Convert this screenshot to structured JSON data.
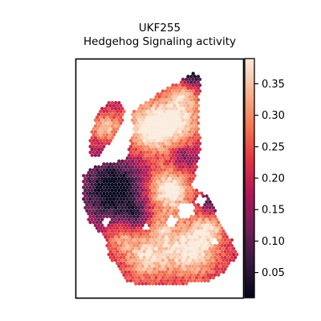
{
  "chart_data": {
    "type": "heatmap",
    "title": "UKF255",
    "subtitle": "Hedgehog Signaling activity",
    "colorbar": {
      "colormap": "rocket",
      "range": [
        0.01,
        0.39
      ],
      "ticks": [
        0.05,
        0.1,
        0.15,
        0.2,
        0.25,
        0.3,
        0.35
      ],
      "tick_labels": [
        "0.05",
        "0.10",
        "0.15",
        "0.20",
        "0.25",
        "0.30",
        "0.35"
      ]
    },
    "grid": false,
    "legend_placement": "right",
    "colors": [
      "#03051a",
      "#35193e",
      "#701f57",
      "#ad1759",
      "#e13342",
      "#f37651",
      "#f6b48f",
      "#faebdd"
    ]
  }
}
